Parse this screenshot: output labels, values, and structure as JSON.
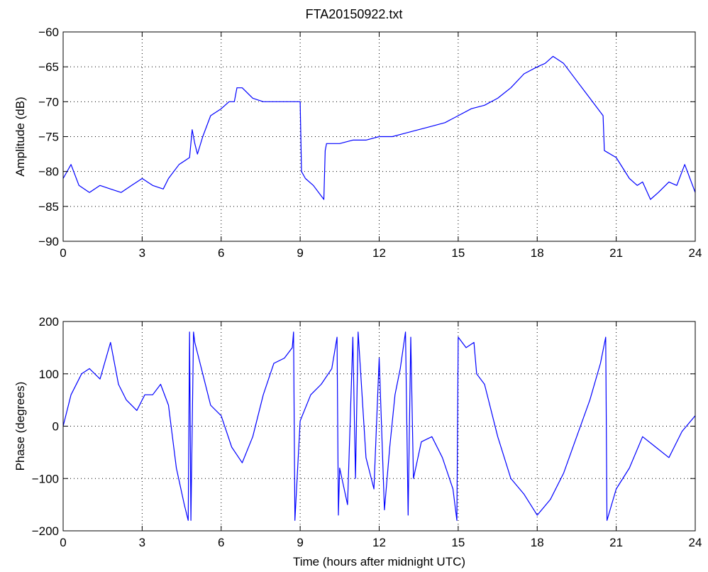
{
  "chart_data": [
    {
      "type": "line",
      "title": "FTA20150922.txt",
      "xlabel": "",
      "ylabel": "Amplitude (dB)",
      "xlim": [
        0,
        24
      ],
      "ylim": [
        -90,
        -60
      ],
      "xticks": [
        0,
        3,
        6,
        9,
        12,
        15,
        18,
        21,
        24
      ],
      "yticks": [
        -90,
        -85,
        -80,
        -75,
        -70,
        -65,
        -60
      ],
      "grid": true,
      "color": "#0000ff",
      "series": [
        {
          "x": [
            0,
            0.3,
            0.6,
            1.0,
            1.4,
            1.8,
            2.2,
            2.6,
            3.0,
            3.4,
            3.8,
            4.0,
            4.4,
            4.8,
            4.9,
            5.0,
            5.1,
            5.3,
            5.6,
            6.0,
            6.3,
            6.5,
            6.6,
            6.8,
            7.2,
            7.6,
            8.0,
            8.4,
            8.8,
            9.0,
            9.05,
            9.2,
            9.5,
            9.9,
            9.95,
            10.0,
            10.5,
            11.0,
            11.5,
            12.0,
            12.5,
            13.0,
            13.5,
            14.0,
            14.5,
            15.0,
            15.5,
            16.0,
            16.5,
            17.0,
            17.5,
            18.0,
            18.3,
            18.6,
            19.0,
            19.5,
            20.0,
            20.5,
            20.55,
            21.0,
            21.5,
            21.8,
            22.0,
            22.3,
            22.6,
            23.0,
            23.3,
            23.6,
            24.0
          ],
          "values": [
            -81,
            -79,
            -82,
            -83,
            -82,
            -82.5,
            -83,
            -82,
            -81,
            -82,
            -82.5,
            -81,
            -79,
            -78,
            -74,
            -76,
            -77.5,
            -75,
            -72,
            -71,
            -70,
            -70,
            -68,
            -68,
            -69.5,
            -70,
            -70,
            -70,
            -70,
            -70,
            -80,
            -81,
            -82,
            -84,
            -77,
            -76,
            -76,
            -75.5,
            -75.5,
            -75,
            -75,
            -74.5,
            -74,
            -73.5,
            -73,
            -72,
            -71,
            -70.5,
            -69.5,
            -68,
            -66,
            -65,
            -64.5,
            -63.5,
            -64.5,
            -67,
            -69.5,
            -72,
            -77,
            -78,
            -81,
            -82,
            -81.5,
            -84,
            -83,
            -81.5,
            -82,
            -79,
            -83
          ]
        }
      ]
    },
    {
      "type": "line",
      "title": "",
      "xlabel": "Time (hours after midnight UTC)",
      "ylabel": "Phase (degrees)",
      "xlim": [
        0,
        24
      ],
      "ylim": [
        -200,
        200
      ],
      "xticks": [
        0,
        3,
        6,
        9,
        12,
        15,
        18,
        21,
        24
      ],
      "yticks": [
        -200,
        -100,
        0,
        100,
        200
      ],
      "grid": true,
      "color": "#0000ff",
      "series": [
        {
          "x": [
            0,
            0.3,
            0.7,
            1.0,
            1.4,
            1.8,
            2.1,
            2.4,
            2.8,
            3.1,
            3.4,
            3.7,
            4.0,
            4.3,
            4.6,
            4.75,
            4.8,
            4.85,
            4.95,
            5.0,
            5.3,
            5.6,
            6.0,
            6.4,
            6.8,
            7.2,
            7.6,
            8.0,
            8.4,
            8.7,
            8.75,
            8.8,
            9.0,
            9.4,
            9.8,
            10.2,
            10.4,
            10.45,
            10.5,
            10.8,
            11.0,
            11.1,
            11.2,
            11.5,
            11.8,
            12.0,
            12.2,
            12.4,
            12.6,
            12.8,
            13.0,
            13.1,
            13.2,
            13.3,
            13.6,
            14.0,
            14.4,
            14.8,
            14.95,
            15.0,
            15.3,
            15.6,
            15.7,
            16.0,
            16.5,
            17.0,
            17.5,
            18.0,
            18.5,
            19.0,
            19.5,
            20.0,
            20.4,
            20.6,
            20.65,
            21.0,
            21.5,
            22.0,
            22.5,
            23.0,
            23.5,
            24.0
          ],
          "values": [
            0,
            60,
            100,
            110,
            90,
            160,
            80,
            50,
            30,
            60,
            60,
            80,
            40,
            -80,
            -150,
            -180,
            180,
            -180,
            180,
            160,
            100,
            40,
            20,
            -40,
            -70,
            -20,
            60,
            120,
            130,
            150,
            180,
            -180,
            10,
            60,
            80,
            110,
            170,
            -170,
            -80,
            -150,
            170,
            -100,
            180,
            -60,
            -120,
            130,
            -160,
            -40,
            60,
            110,
            180,
            -170,
            170,
            -100,
            -30,
            -20,
            -60,
            -120,
            -180,
            170,
            150,
            160,
            100,
            80,
            -20,
            -100,
            -130,
            -170,
            -140,
            -90,
            -20,
            50,
            120,
            170,
            -180,
            -120,
            -80,
            -20,
            -40,
            -60,
            -10,
            20
          ]
        }
      ]
    }
  ]
}
